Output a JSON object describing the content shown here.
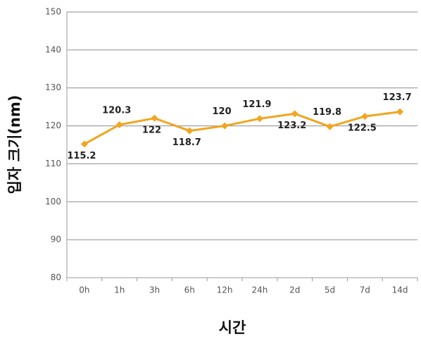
{
  "chart_data": {
    "type": "line",
    "x_label": "시간",
    "y_label": "입자 크기(nm)",
    "categories": [
      "0h",
      "1h",
      "3h",
      "6h",
      "12h",
      "24h",
      "2d",
      "5d",
      "7d",
      "14d"
    ],
    "series": [
      {
        "name": "입자 크기",
        "color": "#f2a51f",
        "values": [
          115.2,
          120.3,
          122,
          118.7,
          120,
          121.9,
          123.2,
          119.8,
          122.5,
          123.7
        ]
      }
    ],
    "ylim": [
      80,
      150
    ],
    "yticks": [
      80,
      90,
      100,
      110,
      120,
      130,
      140,
      150
    ],
    "grid": true
  }
}
